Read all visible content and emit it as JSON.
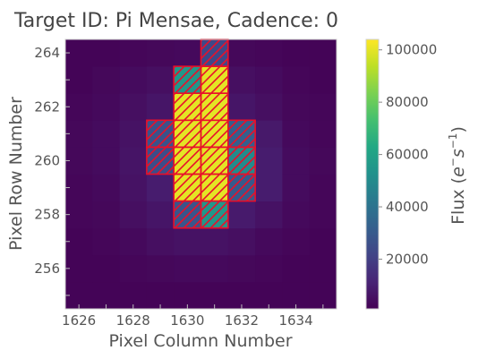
{
  "chart_data": {
    "type": "heatmap",
    "title": "Target ID: Pi Mensae, Cadence: 0",
    "xlabel": "Pixel Column Number",
    "ylabel": "Pixel Row Number",
    "colorbar_label_main": "Flux (",
    "colorbar_label_e": "e",
    "colorbar_label_minus": "−",
    "colorbar_label_s": "s",
    "colorbar_label_exp": "−1",
    "colorbar_label_close": ")",
    "colormap": "viridis",
    "xlim": [
      1625.5,
      1635.5
    ],
    "ylim": [
      254.5,
      264.5
    ],
    "x_ticks": [
      1626,
      1628,
      1630,
      1632,
      1634
    ],
    "y_ticks": [
      256,
      258,
      260,
      262,
      264
    ],
    "x_tick_labels": [
      "1626",
      "1628",
      "1630",
      "1632",
      "1634"
    ],
    "y_tick_labels": [
      "256",
      "258",
      "260",
      "262",
      "264"
    ],
    "colorbar_range": [
      1000,
      104000
    ],
    "colorbar_ticks": [
      20000,
      40000,
      60000,
      80000,
      100000
    ],
    "colorbar_tick_labels": [
      "20000",
      "40000",
      "60000",
      "80000",
      "100000"
    ],
    "columns": [
      1626,
      1627,
      1628,
      1629,
      1630,
      1631,
      1632,
      1633,
      1634,
      1635
    ],
    "rows": [
      255,
      256,
      257,
      258,
      259,
      260,
      261,
      262,
      263,
      264
    ],
    "flux": [
      [
        2000,
        2000,
        2000,
        2000,
        2000,
        2000,
        2000,
        2000,
        2000,
        2000
      ],
      [
        2000,
        2000,
        2500,
        3000,
        3500,
        3500,
        3000,
        2500,
        2000,
        2000
      ],
      [
        2000,
        2500,
        3500,
        5000,
        6000,
        6000,
        5000,
        3500,
        2500,
        2000
      ],
      [
        2500,
        3000,
        5000,
        7000,
        28000,
        55000,
        8500,
        6000,
        3500,
        2500
      ],
      [
        2500,
        3500,
        6000,
        9000,
        100000,
        100000,
        30000,
        9000,
        4000,
        2500
      ],
      [
        3000,
        4000,
        6500,
        25000,
        100000,
        100000,
        50000,
        9000,
        4000,
        3000
      ],
      [
        3000,
        4000,
        6000,
        27000,
        100000,
        100000,
        32000,
        8000,
        3500,
        2500
      ],
      [
        2500,
        3500,
        5000,
        7000,
        100000,
        100000,
        7000,
        5000,
        3000,
        2500
      ],
      [
        2000,
        3000,
        4000,
        5000,
        55000,
        100000,
        5000,
        4000,
        2500,
        2000
      ],
      [
        2000,
        2000,
        2500,
        3000,
        3500,
        23000,
        3000,
        2500,
        2000,
        2000
      ]
    ],
    "aperture_mask": [
      [
        1630,
        258
      ],
      [
        1631,
        258
      ],
      [
        1630,
        259
      ],
      [
        1631,
        259
      ],
      [
        1632,
        259
      ],
      [
        1629,
        260
      ],
      [
        1630,
        260
      ],
      [
        1631,
        260
      ],
      [
        1632,
        260
      ],
      [
        1629,
        261
      ],
      [
        1630,
        261
      ],
      [
        1631,
        261
      ],
      [
        1632,
        261
      ],
      [
        1630,
        262
      ],
      [
        1631,
        262
      ],
      [
        1630,
        263
      ],
      [
        1631,
        263
      ],
      [
        1631,
        264
      ]
    ],
    "aperture_color": "#e8102a",
    "background_color": "#440154"
  }
}
